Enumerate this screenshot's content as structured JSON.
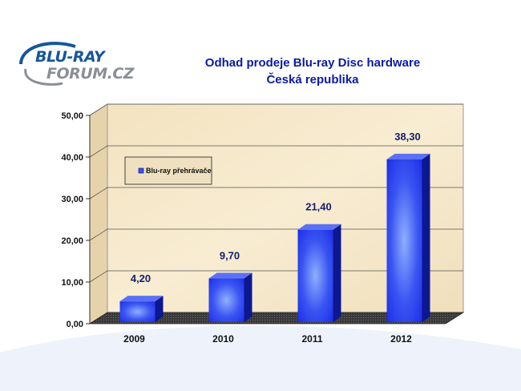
{
  "logo": {
    "line1": "BLU-RAY",
    "line2": "FORUM.CZ"
  },
  "title_line1": "Odhad prodeje Blu-ray Disc hardware",
  "title_line2": "Česká republika",
  "colors": {
    "bar": "#1d2ee8",
    "bar_highlight": "#8fb0ff",
    "plot_background": "#f8ecd2",
    "floor": "#3a3a3a",
    "title": "#0a1aa6",
    "value_label": "#16206e",
    "logo_blue": "#16569a",
    "logo_gray": "#8a8f96"
  },
  "chart_data": {
    "type": "bar",
    "categories": [
      "2009",
      "2010",
      "2011",
      "2012"
    ],
    "series": [
      {
        "name": "Blu-ray přehrávače",
        "values": [
          4.2,
          9.7,
          21.4,
          38.3
        ]
      }
    ],
    "data_labels": [
      "4,20",
      "9,70",
      "21,40",
      "38,30"
    ],
    "y_ticks": [
      "0,00",
      "10,00",
      "20,00",
      "30,00",
      "40,00",
      "50,00"
    ],
    "ylim": [
      0,
      50
    ],
    "grid": true,
    "legend_position": "top-left",
    "style": "3d-bar"
  }
}
